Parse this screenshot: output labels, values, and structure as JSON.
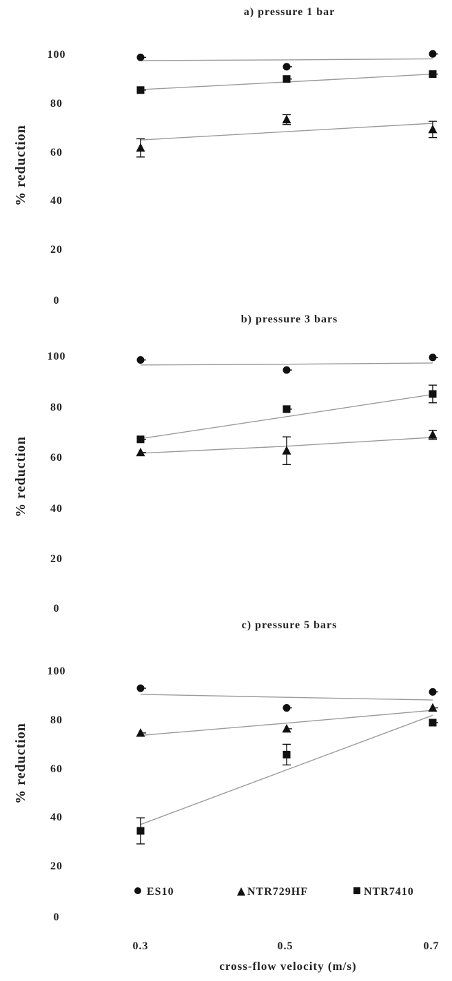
{
  "chart_data": [
    {
      "type": "scatter",
      "title": "a) pressure 1 bar",
      "ylabel": "% reduction",
      "xlabel": "",
      "x": [
        0.3,
        0.5,
        0.7
      ],
      "ylim": [
        0,
        100
      ],
      "yticks": [
        "0",
        "20",
        "40",
        "60",
        "80",
        "100"
      ],
      "trendlines": true,
      "series": [
        {
          "name": "ES10",
          "marker": "circle",
          "values": [
            98.8,
            95,
            100.2
          ],
          "errors": [
            0,
            0,
            0
          ],
          "trend": [
            97.5,
            97.8,
            98.2
          ]
        },
        {
          "name": "NTR7410",
          "marker": "square",
          "values": [
            85.5,
            90,
            92
          ],
          "errors": [
            0,
            0,
            0
          ],
          "trend": [
            85.7,
            88.8,
            92
          ]
        },
        {
          "name": "NTR729HF",
          "marker": "triangle",
          "values": [
            62,
            73.5,
            69.5
          ],
          "errors": [
            3.7,
            2,
            3.3
          ],
          "trend": [
            65.2,
            68.6,
            72
          ]
        }
      ]
    },
    {
      "type": "scatter",
      "title": "b) pressure 3 bars",
      "ylabel": "% reduction",
      "xlabel": "",
      "x": [
        0.3,
        0.5,
        0.7
      ],
      "ylim": [
        0,
        100
      ],
      "yticks": [
        "0",
        "20",
        "40",
        "60",
        "80",
        "100"
      ],
      "trendlines": true,
      "series": [
        {
          "name": "ES10",
          "marker": "circle",
          "values": [
            98.5,
            94.5,
            99.5
          ],
          "errors": [
            0,
            0,
            0
          ],
          "trend": [
            96.5,
            96.8,
            97.3
          ]
        },
        {
          "name": "NTR7410",
          "marker": "square",
          "values": [
            67,
            79,
            85
          ],
          "errors": [
            0,
            0,
            3.5
          ],
          "trend": [
            67.3,
            76,
            84.8
          ]
        },
        {
          "name": "NTR729HF",
          "marker": "triangle",
          "values": [
            61.8,
            62.5,
            68.8
          ],
          "errors": [
            0,
            5.5,
            1.8
          ],
          "trend": [
            61.5,
            64.3,
            67.8
          ]
        }
      ]
    },
    {
      "type": "scatter",
      "title": "c) pressure 5 bars",
      "ylabel": "% reduction",
      "xlabel": "cross-flow velocity (m/s)",
      "x": [
        0.3,
        0.5,
        0.7
      ],
      "xticks": [
        "0.3",
        "0.5",
        "0.7"
      ],
      "ylim": [
        0,
        100
      ],
      "yticks": [
        "0",
        "20",
        "40",
        "60",
        "80",
        "100"
      ],
      "trendlines": true,
      "legend_position": "bottom",
      "series": [
        {
          "name": "ES10",
          "marker": "circle",
          "values": [
            93,
            85,
            91.5
          ],
          "errors": [
            0,
            0,
            0
          ],
          "trend": [
            90.5,
            89.3,
            88.2
          ]
        },
        {
          "name": "NTR729HF",
          "marker": "triangle",
          "values": [
            74.8,
            76.5,
            85
          ],
          "errors": [
            0,
            0,
            0
          ],
          "trend": [
            73.8,
            78.8,
            84
          ]
        },
        {
          "name": "NTR7410",
          "marker": "square",
          "values": [
            35,
            66,
            79
          ],
          "errors": [
            5.3,
            4.2,
            0
          ],
          "trend": [
            37.6,
            59.8,
            82
          ]
        }
      ]
    }
  ],
  "legend": [
    {
      "marker": "circle",
      "label": "ES10"
    },
    {
      "marker": "triangle",
      "label": "NTR729HF"
    },
    {
      "marker": "square",
      "label": "NTR7410"
    }
  ],
  "colors": {
    "marker": "#111111",
    "trendline": "#9a9a9a",
    "text": "#222222"
  }
}
